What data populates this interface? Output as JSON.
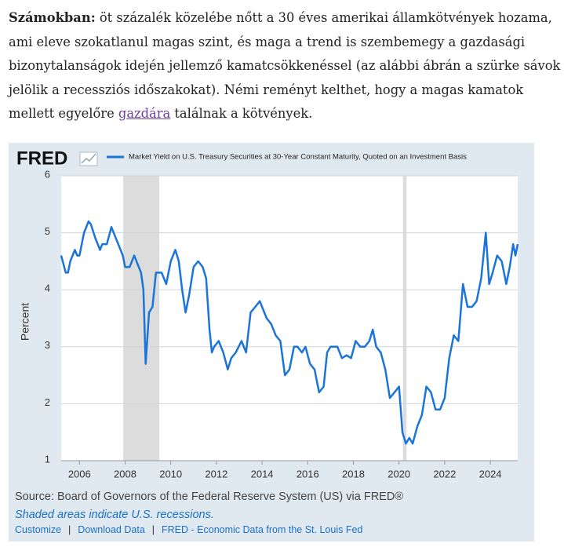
{
  "article": {
    "lead": "Számokban:",
    "text": " öt százalék közelébe nőtt a 30 éves amerikai államkötvények hozama, ami eleve szokatlanul magas szint, és maga a trend is szembemegy a gazdasági bizonytalanságok idején jellemző kamatcsökkenéssel (az alábbi ábrán a szürke sávok jelölik a recessziós időszakokat). Némi reményt kelthet, hogy a magas kamatok mellett egyelőre ",
    "link": "gazdára",
    "tail": " találnak a kötvények."
  },
  "chart_data": {
    "type": "line",
    "logo": "FRED",
    "ylabel": "Percent",
    "x": [
      2005.2,
      2005.4,
      2005.5,
      2005.6,
      2005.8,
      2005.9,
      2006.0,
      2006.2,
      2006.4,
      2006.5,
      2006.7,
      2006.9,
      2007.0,
      2007.2,
      2007.4,
      2007.5,
      2007.7,
      2007.9,
      2008.0,
      2008.2,
      2008.4,
      2008.5,
      2008.7,
      2008.8,
      2008.9,
      2009.05,
      2009.2,
      2009.35,
      2009.6,
      2009.8,
      2010.0,
      2010.2,
      2010.35,
      2010.5,
      2010.65,
      2010.8,
      2011.0,
      2011.2,
      2011.4,
      2011.55,
      2011.7,
      2011.8,
      2011.9,
      2012.1,
      2012.3,
      2012.5,
      2012.65,
      2012.85,
      2013.1,
      2013.3,
      2013.5,
      2013.7,
      2013.9,
      2014.0,
      2014.2,
      2014.4,
      2014.6,
      2014.8,
      2015.0,
      2015.2,
      2015.4,
      2015.55,
      2015.75,
      2015.9,
      2016.1,
      2016.3,
      2016.5,
      2016.7,
      2016.85,
      2017.0,
      2017.3,
      2017.5,
      2017.7,
      2017.9,
      2018.1,
      2018.3,
      2018.5,
      2018.7,
      2018.85,
      2019.0,
      2019.2,
      2019.4,
      2019.6,
      2019.8,
      2020.0,
      2020.15,
      2020.3,
      2020.45,
      2020.6,
      2020.8,
      2021.0,
      2021.2,
      2021.4,
      2021.6,
      2021.8,
      2022.0,
      2022.2,
      2022.4,
      2022.6,
      2022.8,
      2023.0,
      2023.2,
      2023.4,
      2023.6,
      2023.8,
      2023.95,
      2024.1,
      2024.3,
      2024.5,
      2024.7,
      2024.85,
      2025.0,
      2025.1,
      2025.2
    ],
    "series": [
      {
        "name": "Market Yield on U.S. Treasury Securities at 30-Year Constant Maturity, Quoted on an Investment Basis",
        "color": "#1b74d8",
        "values": [
          4.6,
          4.3,
          4.3,
          4.5,
          4.7,
          4.6,
          4.6,
          5.0,
          5.2,
          5.15,
          4.9,
          4.7,
          4.8,
          4.8,
          5.1,
          5.0,
          4.8,
          4.6,
          4.4,
          4.4,
          4.6,
          4.5,
          4.3,
          4.0,
          2.7,
          3.6,
          3.7,
          4.3,
          4.3,
          4.1,
          4.5,
          4.7,
          4.5,
          4.0,
          3.6,
          3.9,
          4.4,
          4.5,
          4.4,
          4.2,
          3.3,
          2.9,
          3.0,
          3.1,
          2.9,
          2.6,
          2.8,
          2.9,
          3.1,
          2.9,
          3.6,
          3.7,
          3.8,
          3.7,
          3.5,
          3.4,
          3.2,
          3.1,
          2.5,
          2.6,
          3.0,
          3.0,
          2.9,
          3.0,
          2.7,
          2.6,
          2.2,
          2.3,
          2.9,
          3.0,
          3.0,
          2.8,
          2.85,
          2.8,
          3.1,
          3.0,
          3.0,
          3.1,
          3.3,
          3.0,
          2.9,
          2.6,
          2.1,
          2.2,
          2.3,
          1.5,
          1.3,
          1.4,
          1.3,
          1.6,
          1.8,
          2.3,
          2.2,
          1.9,
          1.9,
          2.1,
          2.8,
          3.2,
          3.1,
          4.1,
          3.7,
          3.7,
          3.8,
          4.2,
          5.0,
          4.1,
          4.3,
          4.6,
          4.5,
          4.1,
          4.4,
          4.8,
          4.6,
          4.8
        ]
      }
    ],
    "xlim": [
      2005.2,
      2025.2
    ],
    "xticks": [
      2006,
      2008,
      2010,
      2012,
      2014,
      2016,
      2018,
      2020,
      2022,
      2024
    ],
    "ylim": [
      1,
      6
    ],
    "yticks": [
      1,
      2,
      3,
      4,
      5,
      6
    ],
    "grid": true,
    "recessions": [
      [
        2007.92,
        2009.5
      ],
      [
        2020.17,
        2020.33
      ]
    ],
    "recession_color": "#dcdcdc",
    "source": "Source: Board of Governors of the Federal Reserve System (US) via FRED®",
    "note": "Shaded areas indicate U.S. recessions.",
    "footer_links": [
      "Customize",
      "Download Data",
      "FRED - Economic Data from the St. Louis Fed"
    ],
    "separator": "|"
  }
}
